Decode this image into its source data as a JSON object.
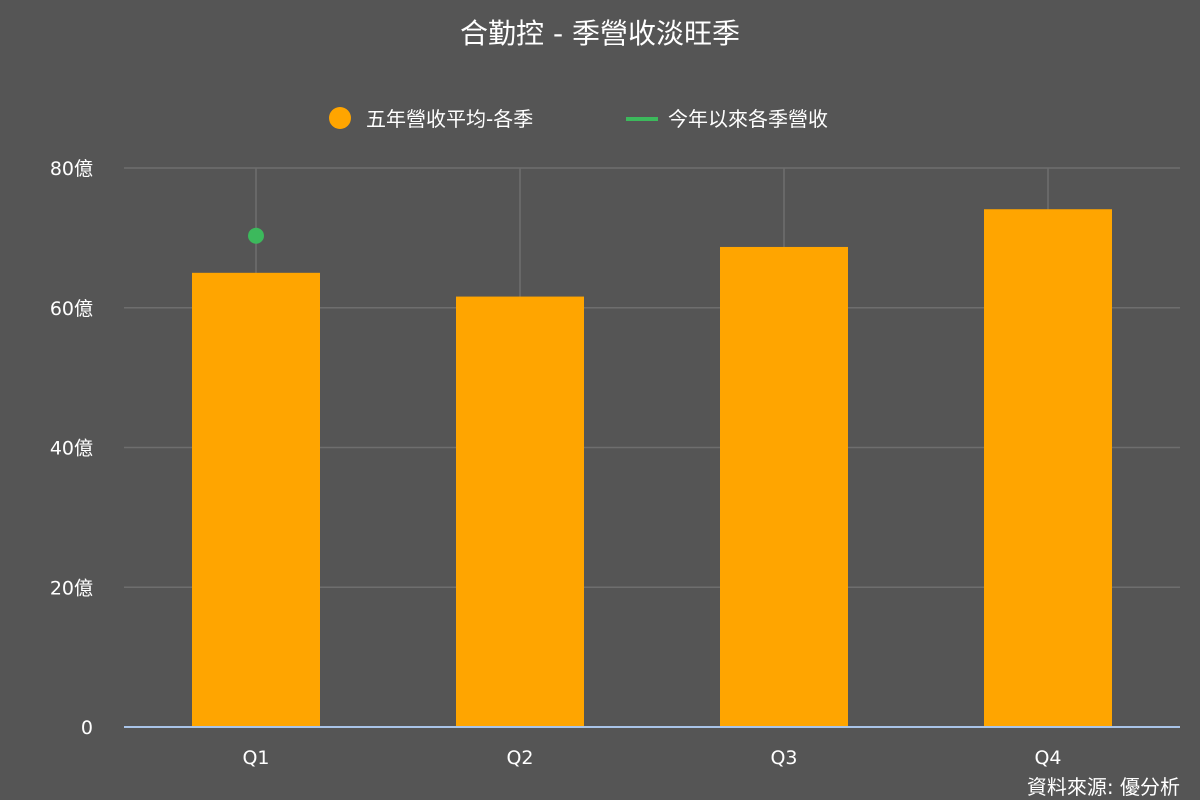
{
  "chart_data": {
    "type": "bar",
    "title": "合勤控 - 季營收淡旺季",
    "categories": [
      "Q1",
      "Q2",
      "Q3",
      "Q4"
    ],
    "series": [
      {
        "name": "五年營收平均-各季",
        "kind": "bar",
        "color": "#FFA500",
        "values": [
          65.0,
          61.6,
          68.7,
          74.1
        ]
      },
      {
        "name": "今年以來各季營收",
        "kind": "line",
        "color": "#3CB95C",
        "values": [
          70.3,
          null,
          null,
          null
        ]
      }
    ],
    "ylim": [
      0,
      80
    ],
    "yticks": [
      0,
      20,
      40,
      60,
      80
    ],
    "ytick_labels": [
      "0",
      "20億",
      "40億",
      "60億",
      "80億"
    ],
    "grid": true,
    "legend_position": "top-center"
  },
  "source_label": "資料來源: 優分析",
  "colors": {
    "background": "#555555",
    "grid": "#6E6E6E",
    "baseline": "#A9C4E8"
  }
}
